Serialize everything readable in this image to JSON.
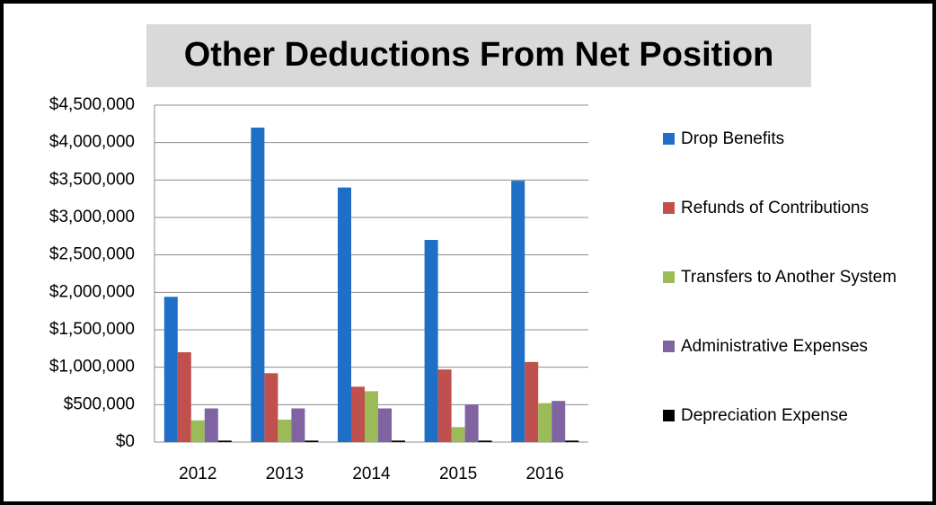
{
  "chart_data": {
    "type": "bar",
    "title": "Other Deductions From Net Position",
    "categories": [
      "2012",
      "2013",
      "2014",
      "2015",
      "2016"
    ],
    "series": [
      {
        "name": "Drop Benefits",
        "color": "#1f6fc6",
        "values": [
          1940000,
          4200000,
          3400000,
          2700000,
          3490000
        ]
      },
      {
        "name": "Refunds of Contributions",
        "color": "#c0504d",
        "values": [
          1200000,
          920000,
          740000,
          970000,
          1070000
        ]
      },
      {
        "name": "Transfers to Another System",
        "color": "#9bbb59",
        "values": [
          290000,
          300000,
          680000,
          200000,
          520000
        ]
      },
      {
        "name": "Administrative Expenses",
        "color": "#8064a2",
        "values": [
          450000,
          450000,
          450000,
          500000,
          550000
        ]
      },
      {
        "name": "Depreciation Expense",
        "color": "#000000",
        "values": [
          20000,
          20000,
          20000,
          20000,
          20000
        ]
      }
    ],
    "ylim": [
      0,
      4500000
    ],
    "yticks": [
      {
        "value": 0,
        "label": "$0"
      },
      {
        "value": 500000,
        "label": "$500,000"
      },
      {
        "value": 1000000,
        "label": "$1,000,000"
      },
      {
        "value": 1500000,
        "label": "$1,500,000"
      },
      {
        "value": 2000000,
        "label": "$2,000,000"
      },
      {
        "value": 2500000,
        "label": "$2,500,000"
      },
      {
        "value": 3000000,
        "label": "$3,000,000"
      },
      {
        "value": 3500000,
        "label": "$3,500,000"
      },
      {
        "value": 4000000,
        "label": "$4,000,000"
      },
      {
        "value": 4500000,
        "label": "$4,500,000"
      }
    ],
    "grid": true,
    "legend": "right"
  }
}
